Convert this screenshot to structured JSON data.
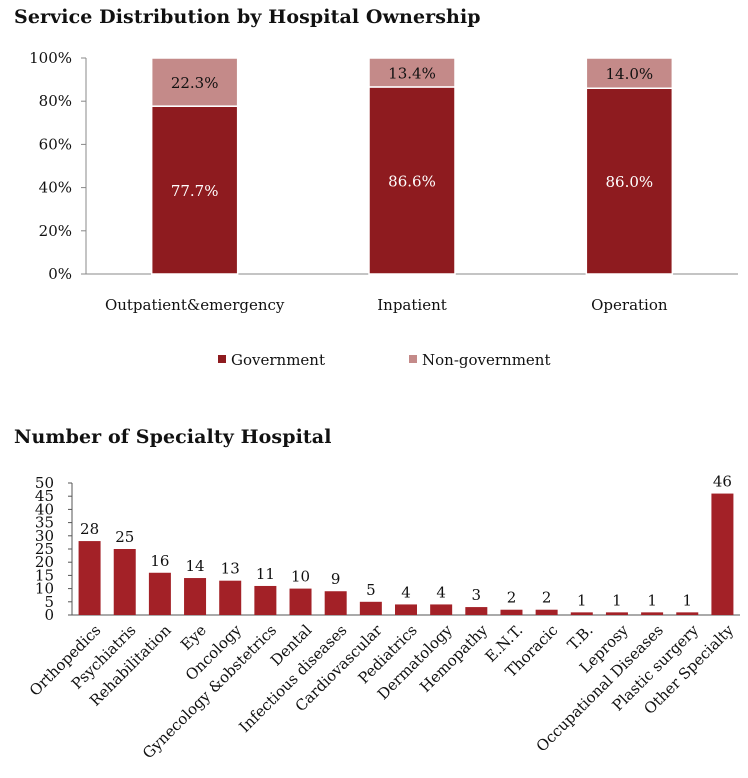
{
  "chart_data": [
    {
      "type": "bar",
      "stacked": true,
      "title": "Service Distribution by Hospital Ownership",
      "categories": [
        "Outpatient&emergency",
        "Inpatient",
        "Operation"
      ],
      "series": [
        {
          "name": "Government",
          "values": [
            77.7,
            86.6,
            86.0
          ],
          "labels": [
            "77.7%",
            "86.6%",
            "86.0%"
          ],
          "color": "#8e1b1f"
        },
        {
          "name": "Non-government",
          "values": [
            22.3,
            13.4,
            14.0
          ],
          "labels": [
            "22.3%",
            "13.4%",
            "14.0%"
          ],
          "color": "#c48a89"
        }
      ],
      "ylim": [
        0,
        100
      ],
      "yticks": [
        "0%",
        "20%",
        "40%",
        "60%",
        "80%",
        "100%"
      ],
      "legend": "bottom",
      "grid": false
    },
    {
      "type": "bar",
      "title": "Number of Specialty Hospital",
      "categories": [
        "Orthopedics",
        "Psychiatris",
        "Rehabilitation",
        "Eye",
        "Oncology",
        "Gynecology &obstetrics",
        "Dental",
        "Infectious diseases",
        "Cardiovascular",
        "Pediatrics",
        "Dermatology",
        "Hemopathy",
        "E.N.T.",
        "Thoracic",
        "T.B.",
        "Leprosy",
        "Occupational Diseases",
        "Plastic surgery",
        "Other Specialty"
      ],
      "values": [
        28,
        25,
        16,
        14,
        13,
        11,
        10,
        9,
        5,
        4,
        4,
        3,
        2,
        2,
        1,
        1,
        1,
        1,
        46
      ],
      "ylim": [
        0,
        50
      ],
      "yticks": [
        "0",
        "5",
        "10",
        "15",
        "20",
        "25",
        "30",
        "35",
        "40",
        "45",
        "50"
      ],
      "color": "#a32127",
      "grid": false
    }
  ]
}
